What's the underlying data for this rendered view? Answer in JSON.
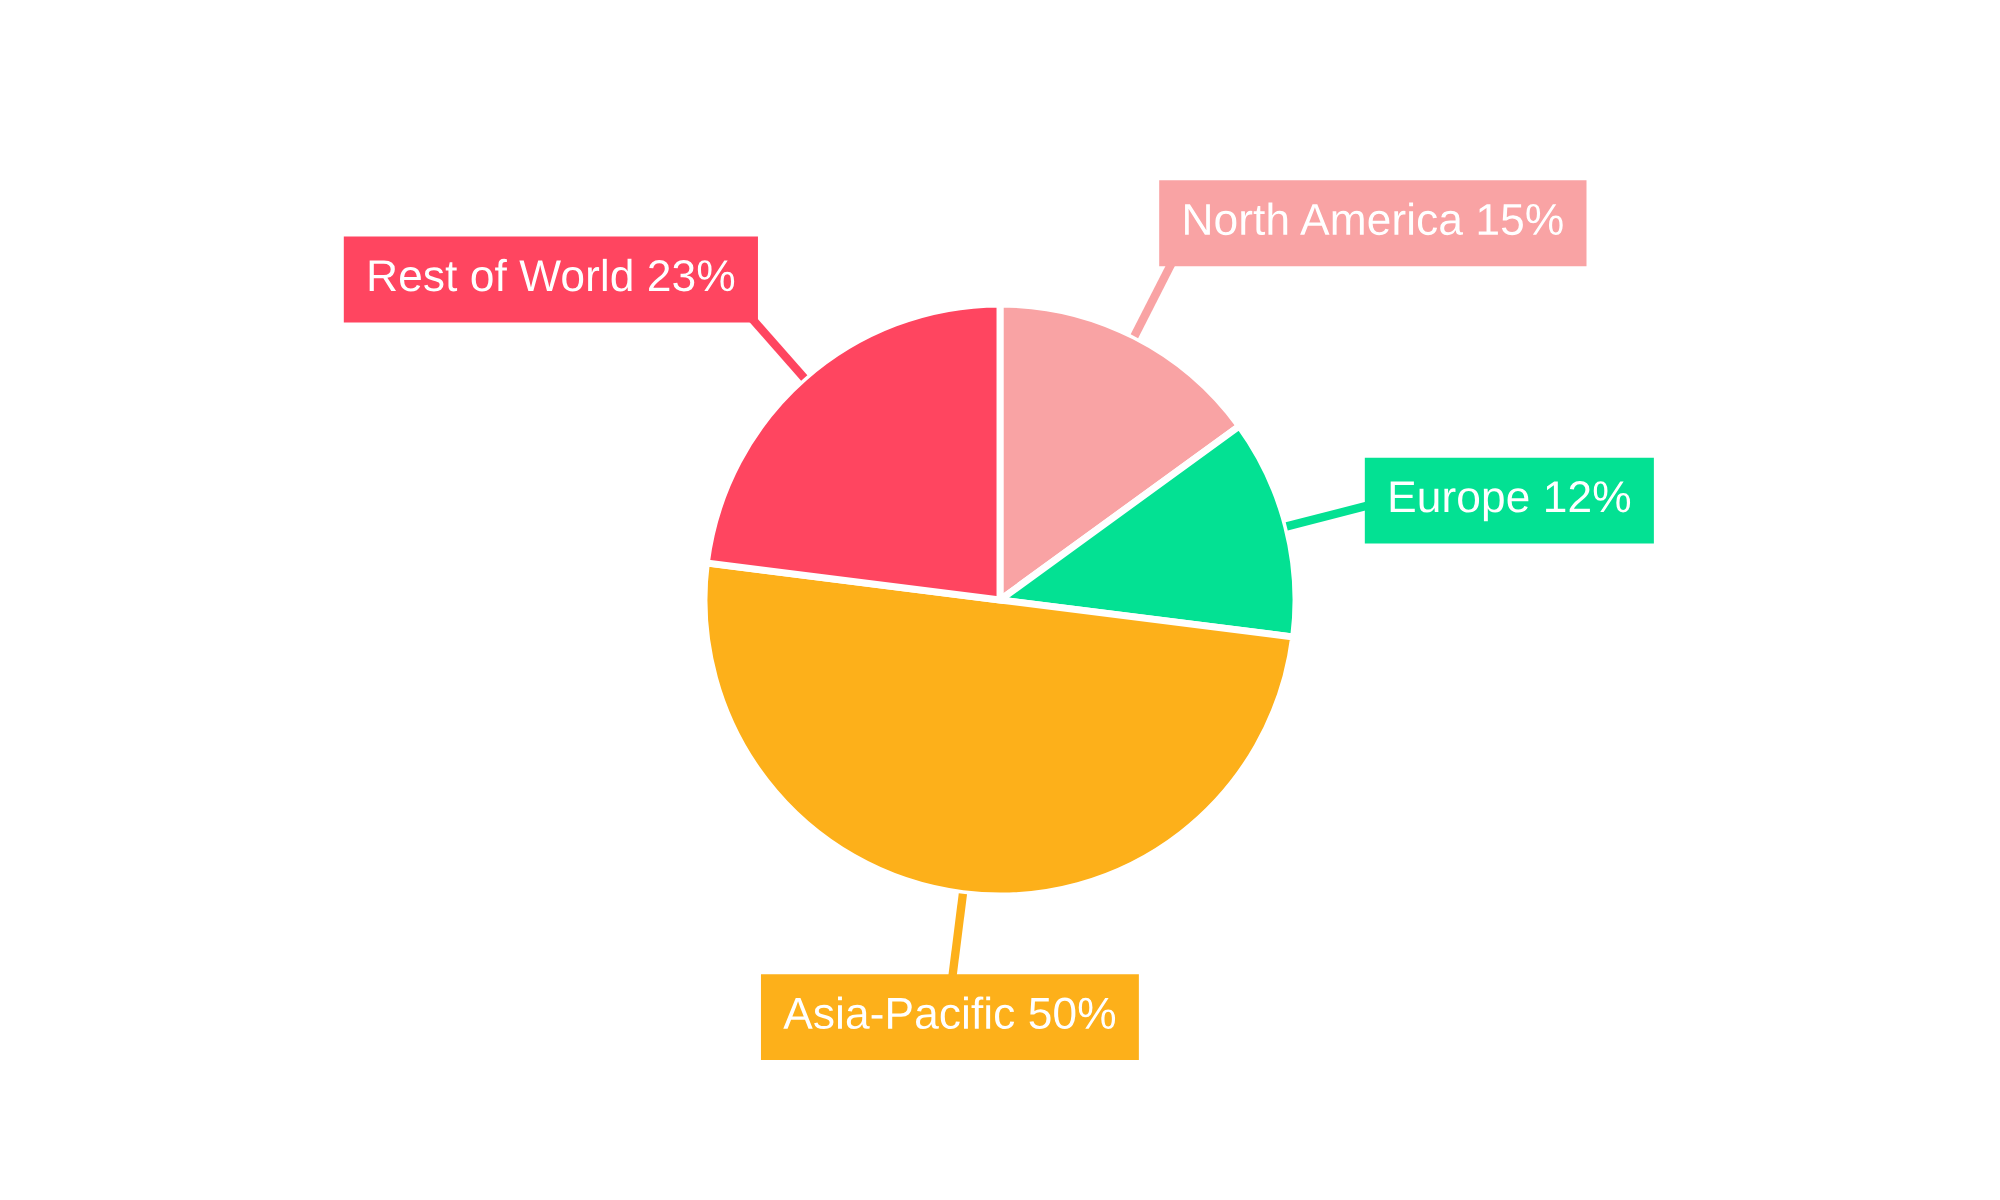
{
  "chart_data": {
    "type": "pie",
    "categories": [
      "North America",
      "Europe",
      "Asia-Pacific",
      "Rest of World"
    ],
    "values": [
      15,
      12,
      50,
      23
    ],
    "value_labels": [
      "15%",
      "12%",
      "50%",
      "23%"
    ],
    "colors": [
      "#f9a3a4",
      "#03e193",
      "#fdb01a",
      "#ff4560"
    ],
    "legend": false
  }
}
